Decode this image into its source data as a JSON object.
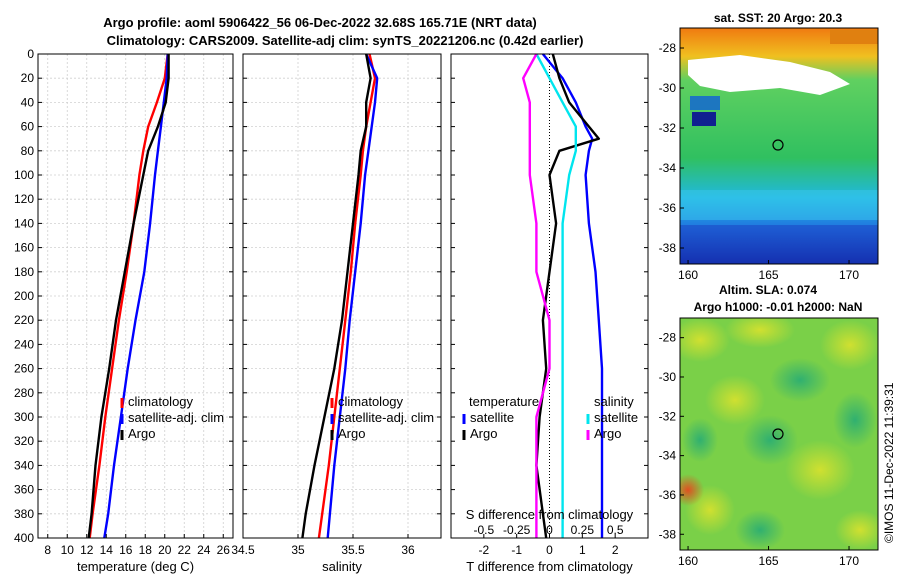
{
  "title": {
    "line1": "Argo profile: aoml 5906422_56 06-Dec-2022 32.68S 165.71E (NRT data)",
    "line2": "Climatology: CARS2009. Satellite-adj clim: synTS_20221206.nc (0.42d earlier)"
  },
  "watermark": "©IMOS 11-Dec-2022 11:39:31",
  "colors": {
    "climatology": "#ff0000",
    "satellite": "#0000ff",
    "argo": "#000000",
    "magenta": "#ff00ff",
    "cyan": "#00e5ee"
  },
  "chart_data": [
    {
      "type": "line",
      "name": "temperature-profile",
      "xlabel": "temperature (deg C)",
      "xlim": [
        7,
        27
      ],
      "xticks": [
        "8",
        "10",
        "12",
        "14",
        "16",
        "18",
        "20",
        "22",
        "24",
        "26"
      ],
      "ylim": [
        0,
        400
      ],
      "yticks": [
        "0",
        "20",
        "40",
        "60",
        "80",
        "100",
        "120",
        "140",
        "160",
        "180",
        "200",
        "220",
        "240",
        "260",
        "280",
        "300",
        "320",
        "340",
        "360",
        "380",
        "400"
      ],
      "grid": true,
      "legend": [
        "climatology",
        "satellite-adj. clim",
        "Argo"
      ],
      "depth": [
        0,
        20,
        40,
        60,
        80,
        100,
        140,
        180,
        220,
        260,
        300,
        340,
        380,
        400
      ],
      "series": [
        {
          "name": "climatology",
          "values": [
            20.3,
            20.0,
            19.2,
            18.3,
            17.8,
            17.4,
            16.8,
            16.1,
            15.3,
            14.6,
            13.9,
            13.3,
            12.6,
            12.3
          ]
        },
        {
          "name": "satellite-adj. clim",
          "values": [
            20.3,
            20.2,
            19.9,
            19.6,
            19.3,
            19.0,
            18.5,
            17.9,
            17.0,
            16.2,
            15.5,
            14.8,
            14.2,
            13.8
          ]
        },
        {
          "name": "Argo",
          "values": [
            20.4,
            20.4,
            20.1,
            19.3,
            18.3,
            17.8,
            16.8,
            15.9,
            15.0,
            14.3,
            13.5,
            12.9,
            12.5,
            12.2
          ]
        }
      ]
    },
    {
      "type": "line",
      "name": "salinity-profile",
      "xlabel": "salinity",
      "xlim": [
        34.5,
        36.3
      ],
      "xticks": [
        "34.5",
        "35",
        "35.5",
        "36"
      ],
      "ylim": [
        0,
        400
      ],
      "grid": true,
      "legend": [
        "climatology",
        "satellite-adj. clim",
        "Argo"
      ],
      "depth": [
        0,
        20,
        40,
        60,
        80,
        100,
        140,
        180,
        220,
        260,
        300,
        340,
        380,
        400
      ],
      "series": [
        {
          "name": "climatology",
          "values": [
            35.65,
            35.7,
            35.66,
            35.62,
            35.59,
            35.57,
            35.52,
            35.48,
            35.43,
            35.38,
            35.33,
            35.28,
            35.22,
            35.19
          ]
        },
        {
          "name": "satellite-adj. clim",
          "values": [
            35.62,
            35.72,
            35.7,
            35.67,
            35.64,
            35.61,
            35.57,
            35.52,
            35.47,
            35.43,
            35.38,
            35.33,
            35.29,
            35.27
          ]
        },
        {
          "name": "Argo",
          "values": [
            35.62,
            35.66,
            35.62,
            35.62,
            35.57,
            35.55,
            35.5,
            35.45,
            35.4,
            35.33,
            35.24,
            35.15,
            35.07,
            35.04
          ]
        }
      ]
    },
    {
      "type": "line",
      "name": "difference-profile",
      "xlabel": "T difference from climatology",
      "xlim": [
        -3,
        3
      ],
      "xticks": [
        "-2",
        "-1",
        "0",
        "1",
        "2"
      ],
      "secondary_xlabel": "S difference from climatology",
      "secondary_xticks": [
        "-0.5",
        "-0.25",
        "0",
        "0.25",
        "0.5"
      ],
      "ylim": [
        0,
        400
      ],
      "grid": false,
      "legend_temperature": [
        "temperature",
        "satellite",
        "Argo"
      ],
      "legend_salinity": [
        "salinity",
        "satellite",
        "Argo"
      ],
      "depth": [
        0,
        20,
        40,
        60,
        70,
        80,
        100,
        140,
        180,
        220,
        260,
        300,
        340,
        380,
        400
      ],
      "series": [
        {
          "name": "T satellite",
          "values": [
            -0.2,
            0.4,
            0.8,
            1.1,
            1.3,
            1.2,
            1.1,
            1.2,
            1.4,
            1.5,
            1.6,
            1.6,
            1.6,
            1.6,
            1.6
          ]
        },
        {
          "name": "T Argo",
          "values": [
            0.1,
            0.3,
            0.6,
            1.2,
            1.5,
            0.3,
            0.0,
            0.2,
            0.0,
            -0.2,
            -0.1,
            -0.3,
            -0.4,
            -0.2,
            -0.1
          ]
        },
        {
          "name": "S satellite",
          "values": [
            -0.1,
            0.0,
            0.1,
            0.2,
            0.2,
            0.2,
            0.15,
            0.1,
            0.1,
            0.1,
            0.1,
            0.1,
            0.1,
            0.1,
            0.1
          ]
        },
        {
          "name": "S Argo",
          "values": [
            -0.1,
            -0.2,
            -0.15,
            -0.15,
            -0.15,
            -0.15,
            -0.15,
            -0.1,
            -0.1,
            0.0,
            0.0,
            -0.1,
            -0.1,
            -0.1,
            -0.1
          ]
        }
      ]
    },
    {
      "type": "heatmap",
      "name": "sst-map",
      "title": "sat. SST: 20 Argo: 20.3",
      "xticks": [
        "160",
        "165",
        "170"
      ],
      "yticks": [
        "-28",
        "-30",
        "-32",
        "-34",
        "-36",
        "-38"
      ]
    },
    {
      "type": "heatmap",
      "name": "sla-map",
      "title_line1": "Altim. SLA: 0.074",
      "title_line2": "Argo h1000: -0.01 h2000: NaN",
      "xticks": [
        "160",
        "165",
        "170"
      ],
      "yticks": [
        "-28",
        "-30",
        "-32",
        "-34",
        "-36",
        "-38"
      ]
    }
  ]
}
